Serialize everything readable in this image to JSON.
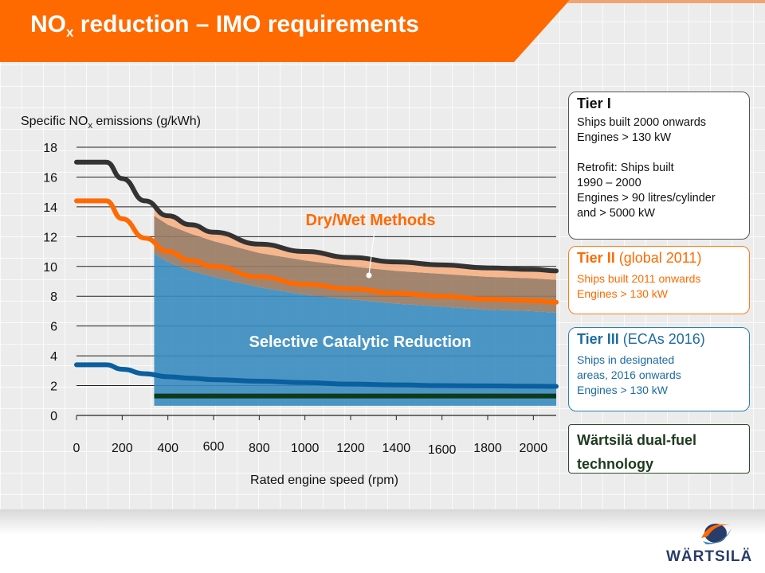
{
  "title": {
    "main_pre": "NO",
    "main_sub": "x",
    "main_post": " reduction – IMO requirements"
  },
  "colors": {
    "orange": "#ff6a00",
    "scr_blue": "#3a8cc0",
    "tier1_line": "#333333",
    "tier3_line": "#0a5f9e",
    "dual_fuel": "#0e3a1a"
  },
  "chart_data": {
    "type": "line",
    "ylabel_pre": "Specific NO",
    "ylabel_sub": "x",
    "ylabel_post": " emissions (g/kWh)",
    "xlabel": "Rated engine speed (rpm)",
    "xlim": [
      0,
      2100
    ],
    "ylim": [
      0,
      18
    ],
    "yticks": [
      "0",
      "2",
      "4",
      "6",
      "8",
      "10",
      "12",
      "14",
      "16",
      "18"
    ],
    "xticks": [
      "0",
      "200",
      "400",
      "600",
      "800",
      "1000",
      "1200",
      "1400",
      "1600",
      "1800",
      "2000"
    ],
    "series": [
      {
        "key": "tier1",
        "x": [
          0,
          130,
          200,
          300,
          400,
          500,
          600,
          800,
          1000,
          1200,
          1400,
          1600,
          1800,
          2000,
          2100
        ],
        "values": [
          17.0,
          17.0,
          15.9,
          14.4,
          13.4,
          12.8,
          12.3,
          11.5,
          11.0,
          10.6,
          10.3,
          10.1,
          9.9,
          9.8,
          9.7
        ]
      },
      {
        "key": "tier2",
        "x": [
          0,
          130,
          200,
          300,
          400,
          500,
          600,
          800,
          1000,
          1200,
          1400,
          1600,
          1800,
          2000,
          2100
        ],
        "values": [
          14.4,
          14.4,
          13.2,
          11.9,
          11.0,
          10.4,
          10.0,
          9.3,
          8.8,
          8.5,
          8.2,
          8.0,
          7.8,
          7.7,
          7.6
        ]
      },
      {
        "key": "tier3",
        "x": [
          0,
          130,
          200,
          300,
          400,
          500,
          600,
          800,
          1000,
          1200,
          1400,
          1600,
          1800,
          2000,
          2100
        ],
        "values": [
          3.4,
          3.4,
          3.1,
          2.8,
          2.6,
          2.5,
          2.4,
          2.3,
          2.2,
          2.1,
          2.05,
          2.0,
          1.98,
          1.96,
          1.95
        ]
      }
    ],
    "dual_fuel_level": 1.3,
    "scr_region": {
      "x_start": 340,
      "x_end": 2100
    },
    "dry_wet_label": "Dry/Wet Methods",
    "scr_label": "Selective Catalytic Reduction"
  },
  "tiers": {
    "tier1": {
      "title": "Tier I",
      "lines": [
        "Ships built 2000 onwards",
        "Engines > 130 kW",
        "",
        "Retrofit: Ships built",
        "1990 – 2000",
        "Engines > 90 litres/cylinder",
        "and > 5000 kW"
      ]
    },
    "tier2": {
      "title": "Tier II",
      "note": " (global 2011)",
      "lines": [
        "Ships built 2011 onwards",
        "Engines > 130 kW"
      ]
    },
    "tier3": {
      "title": "Tier III",
      "note": " (ECAs 2016)",
      "lines": [
        "Ships in designated",
        "areas, 2016 onwards",
        "Engines > 130 kW"
      ]
    },
    "tier4": {
      "title_line1": "Wärtsilä dual-fuel",
      "title_line2": "technology"
    }
  },
  "logo": {
    "text": "WÄRTSILÄ"
  }
}
